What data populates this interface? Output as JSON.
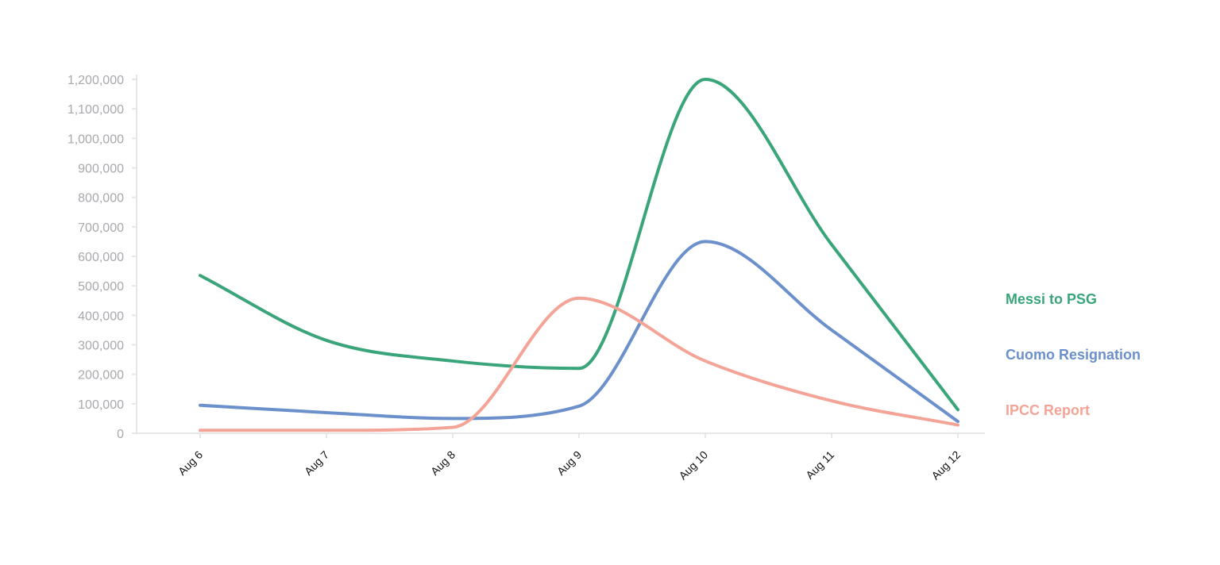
{
  "chart_data": {
    "type": "line",
    "categories": [
      "Aug 6",
      "Aug 7",
      "Aug 8",
      "Aug 9",
      "Aug 10",
      "Aug 11",
      "Aug 12"
    ],
    "y_ticks": [
      "0",
      "100,000",
      "200,000",
      "300,000",
      "400,000",
      "500,000",
      "600,000",
      "700,000",
      "800,000",
      "900,000",
      "1,000,000",
      "1,100,000",
      "1,200,000"
    ],
    "ylim": [
      0,
      1200000
    ],
    "grid": false,
    "legend_placement": "right",
    "series": [
      {
        "name": "Messi to PSG",
        "color": "#3aa57a",
        "values": [
          535000,
          315000,
          245000,
          220000,
          1200000,
          640000,
          80000
        ]
      },
      {
        "name": "Cuomo Resignation",
        "color": "#6b90cb",
        "values": [
          95000,
          70000,
          50000,
          92000,
          650000,
          350000,
          40000
        ]
      },
      {
        "name": "IPCC Report",
        "color": "#f4a497",
        "values": [
          10000,
          10000,
          20000,
          458000,
          245000,
          110000,
          28000
        ]
      }
    ]
  }
}
